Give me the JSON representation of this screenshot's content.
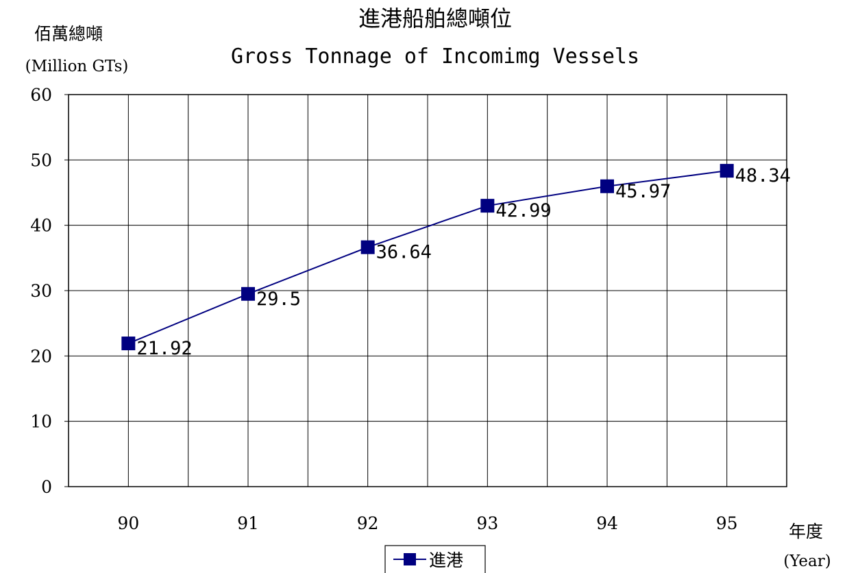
{
  "chart_data": {
    "type": "line",
    "title": "進港船舶總噸位",
    "subtitle": "Gross Tonnage of Incomimg Vessels",
    "ylabel": "佰萬總噸",
    "ylabel_en": "(Million GTs)",
    "xlabel": "年度",
    "xlabel_en": "(Year)",
    "categories": [
      "90",
      "91",
      "92",
      "93",
      "94",
      "95"
    ],
    "ylim": [
      0,
      60
    ],
    "yticks": [
      0,
      10,
      20,
      30,
      40,
      50,
      60
    ],
    "grid": true,
    "legend_position": "bottom",
    "series": [
      {
        "name": "進港",
        "values": [
          21.92,
          29.5,
          36.64,
          42.99,
          45.97,
          48.34
        ],
        "labels": [
          "21.92",
          "29.5",
          "36.64",
          "42.99",
          "45.97",
          "48.34"
        ],
        "color": "#000080",
        "marker": "square"
      }
    ]
  }
}
